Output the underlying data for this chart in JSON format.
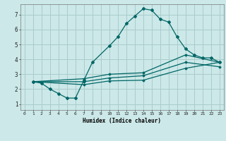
{
  "title": "",
  "xlabel": "Humidex (Indice chaleur)",
  "bg_color": "#cce8e8",
  "grid_color": "#aacccc",
  "line_color": "#006666",
  "xlim": [
    -0.5,
    23.5
  ],
  "ylim": [
    0.6,
    7.7
  ],
  "xticks": [
    0,
    1,
    2,
    3,
    4,
    5,
    6,
    7,
    8,
    9,
    10,
    11,
    12,
    13,
    14,
    15,
    16,
    17,
    18,
    19,
    20,
    21,
    22,
    23
  ],
  "yticks": [
    1,
    2,
    3,
    4,
    5,
    6,
    7
  ],
  "lines": [
    {
      "x": [
        1,
        2,
        3,
        4,
        5,
        6,
        7,
        8,
        10,
        11,
        12,
        13,
        14,
        15,
        16,
        17,
        18,
        19,
        20,
        21,
        22,
        23
      ],
      "y": [
        2.5,
        2.4,
        2.0,
        1.7,
        1.4,
        1.4,
        2.6,
        3.8,
        4.9,
        5.5,
        6.4,
        6.9,
        7.4,
        7.3,
        6.7,
        6.5,
        5.5,
        4.7,
        4.3,
        4.1,
        4.1,
        3.8
      ],
      "marker": true
    },
    {
      "x": [
        1,
        7,
        10,
        14,
        19,
        23
      ],
      "y": [
        2.5,
        2.7,
        3.0,
        3.1,
        4.3,
        3.8
      ],
      "marker": false
    },
    {
      "x": [
        1,
        7,
        10,
        14,
        19,
        23
      ],
      "y": [
        2.5,
        2.5,
        2.75,
        2.9,
        3.8,
        3.5
      ],
      "marker": false
    },
    {
      "x": [
        1,
        7,
        10,
        14,
        19,
        23
      ],
      "y": [
        2.5,
        2.3,
        2.55,
        2.6,
        3.4,
        3.8
      ],
      "marker": false
    }
  ]
}
